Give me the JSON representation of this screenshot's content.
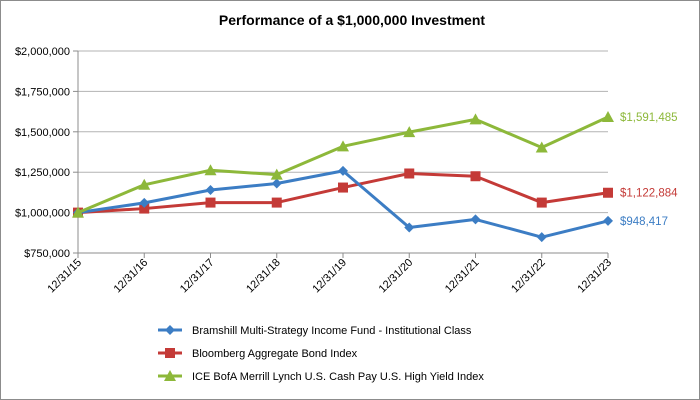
{
  "chart_data": {
    "type": "line",
    "title": "Performance of a $1,000,000 Investment",
    "xlabel": "",
    "ylabel": "",
    "categories": [
      "12/31/15",
      "12/31/16",
      "12/31/17",
      "12/31/18",
      "12/31/19",
      "12/31/20",
      "12/31/21",
      "12/31/22",
      "12/31/23"
    ],
    "ylim": [
      750000,
      2000000
    ],
    "yticks": [
      750000,
      1000000,
      1250000,
      1500000,
      1750000,
      2000000
    ],
    "ytick_labels": [
      "$750,000",
      "$1,000,000",
      "$1,250,000",
      "$1,500,000",
      "$1,750,000",
      "$2,000,000"
    ],
    "grid": "horizontal",
    "legend_position": "bottom",
    "series": [
      {
        "name": "Bramshill Multi-Strategy Income Fund - Institutional Class",
        "color": "#3c7dc4",
        "marker": "diamond",
        "values": [
          1000000,
          1060000,
          1140000,
          1180000,
          1258000,
          908000,
          958000,
          848000,
          948417
        ],
        "end_label": "$948,417"
      },
      {
        "name": "Bloomberg Aggregate Bond Index",
        "color": "#c43a37",
        "marker": "square",
        "values": [
          1000000,
          1025000,
          1062000,
          1062000,
          1155000,
          1242000,
          1225000,
          1062000,
          1122884
        ],
        "end_label": "$1,122,884"
      },
      {
        "name": "ICE BofA Merrill Lynch U.S. Cash Pay U.S. High Yield Index",
        "color": "#8db83a",
        "marker": "triangle",
        "values": [
          1000000,
          1172000,
          1262000,
          1235000,
          1410000,
          1498000,
          1577000,
          1403000,
          1591485
        ],
        "end_label": "$1,591,485"
      }
    ]
  }
}
